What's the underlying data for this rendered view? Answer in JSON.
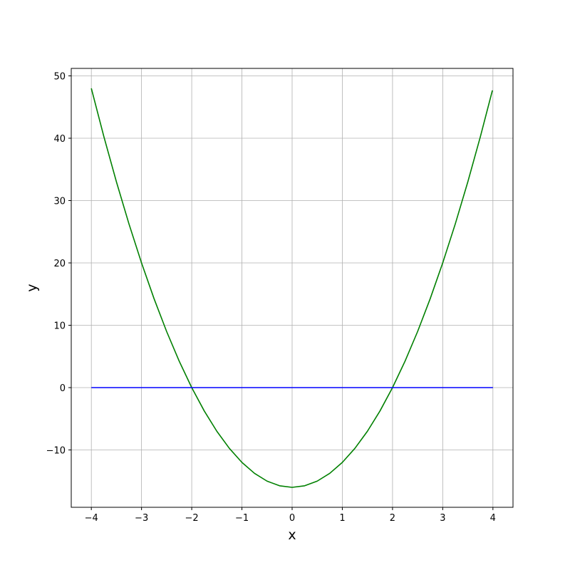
{
  "chart_data": {
    "type": "line",
    "title": "",
    "xlabel": "x",
    "ylabel": "y",
    "xlim": [
      -4.4,
      4.4
    ],
    "ylim": [
      -19.2,
      51.2
    ],
    "xticks": [
      -4,
      -3,
      -2,
      -1,
      0,
      1,
      2,
      3,
      4
    ],
    "xtick_labels": [
      "−4",
      "−3",
      "−2",
      "−1",
      "0",
      "1",
      "2",
      "3",
      "4"
    ],
    "yticks": [
      -10,
      0,
      10,
      20,
      30,
      40,
      50
    ],
    "ytick_labels": [
      "−10",
      "0",
      "10",
      "20",
      "30",
      "40",
      "50"
    ],
    "grid": true,
    "series": [
      {
        "color": "#008000",
        "x": [
          -4,
          -3.75,
          -3.5,
          -3.25,
          -3,
          -2.75,
          -2.5,
          -2.25,
          -2,
          -1.75,
          -1.5,
          -1.25,
          -1,
          -0.75,
          -0.5,
          -0.25,
          0,
          0.25,
          0.5,
          0.75,
          1,
          1.25,
          1.5,
          1.75,
          2,
          2.25,
          2.5,
          2.75,
          3,
          3.25,
          3.5,
          3.75,
          3.99
        ],
        "y": [
          48,
          40.25,
          33,
          26.25,
          20,
          14.25,
          9,
          4.25,
          0,
          -3.75,
          -7,
          -9.75,
          -12,
          -13.75,
          -15,
          -15.75,
          -16,
          -15.75,
          -15,
          -13.75,
          -12,
          -9.75,
          -7,
          -3.75,
          0,
          4.25,
          9,
          14.25,
          20,
          26.25,
          33,
          40.25,
          47.68
        ]
      },
      {
        "color": "#0000ff",
        "x": [
          -4,
          4
        ],
        "y": [
          0,
          0
        ]
      }
    ]
  }
}
